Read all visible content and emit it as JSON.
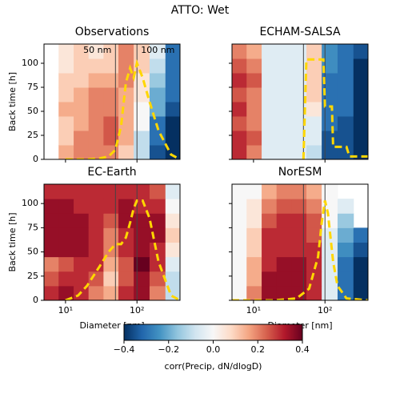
{
  "title": "ATTO: Wet",
  "colorbar": {
    "label": "corr(Precip, dN/dlogD)",
    "colormap": "RdBu_r",
    "lim": [
      -0.4,
      0.4
    ],
    "ticks": [
      {
        "value": -0.4,
        "label": "−0.4"
      },
      {
        "value": -0.2,
        "label": "−0.2"
      },
      0.0,
      0.2,
      0.4
    ]
  },
  "chart_data": [
    {
      "type": "heatmap",
      "title": "Observations",
      "ylabel": "Back time [h]",
      "log_x": true,
      "xlim": [
        5,
        400
      ],
      "ylim": [
        0,
        120
      ],
      "xticks": [
        10,
        100
      ],
      "yticks": [
        0,
        25,
        50,
        75,
        100
      ],
      "x_edges": [
        5,
        8,
        13,
        21,
        34,
        55,
        90,
        150,
        250,
        400
      ],
      "y_edges": [
        0,
        15,
        30,
        45,
        60,
        75,
        90,
        105,
        120
      ],
      "values": [
        [
          null,
          0.15,
          0.2,
          0.2,
          0.2,
          0.1,
          -0.1,
          -0.35,
          -0.4
        ],
        [
          null,
          0.1,
          0.2,
          0.2,
          0.25,
          0.15,
          -0.1,
          -0.3,
          -0.4
        ],
        [
          null,
          0.1,
          0.15,
          0.2,
          0.25,
          0.15,
          0,
          -0.3,
          -0.4
        ],
        [
          null,
          0.15,
          0.15,
          0.2,
          0.2,
          0.15,
          0,
          -0.2,
          -0.35
        ],
        [
          null,
          0.1,
          0.15,
          0.2,
          0.2,
          0.15,
          0.05,
          -0.2,
          -0.3
        ],
        [
          null,
          0.1,
          0.1,
          0.15,
          0.15,
          0.2,
          0.05,
          -0.15,
          -0.3
        ],
        [
          null,
          0.05,
          0.1,
          0.1,
          0.1,
          0.2,
          0.1,
          -0.1,
          -0.3
        ],
        [
          null,
          0.05,
          0.1,
          0.05,
          0.1,
          0.2,
          0.1,
          -0.05,
          -0.3
        ]
      ],
      "vlines": [
        50,
        100
      ],
      "annotations": [
        "50 nm",
        "100 nm"
      ],
      "line": {
        "color": "#ffd700",
        "x": [
          10,
          20,
          30,
          40,
          50,
          60,
          70,
          80,
          90,
          100,
          120,
          150,
          200,
          300,
          400
        ],
        "y": [
          0,
          0,
          1,
          3,
          10,
          35,
          80,
          95,
          85,
          100,
          85,
          60,
          30,
          5,
          0
        ]
      }
    },
    {
      "type": "heatmap",
      "title": "ECHAM-SALSA",
      "log_x": true,
      "xlim": [
        5,
        400
      ],
      "ylim": [
        0,
        120
      ],
      "xticks": [
        10,
        100
      ],
      "yticks": [
        0,
        25,
        50,
        75,
        100
      ],
      "x_edges": [
        5,
        8,
        13,
        21,
        34,
        55,
        90,
        150,
        250,
        400
      ],
      "y_edges": [
        0,
        15,
        30,
        45,
        60,
        75,
        90,
        105,
        120
      ],
      "values": [
        [
          0.3,
          0.2,
          -0.05,
          -0.05,
          -0.05,
          -0.1,
          -0.35,
          -0.35,
          -0.4
        ],
        [
          0.3,
          0.25,
          -0.05,
          -0.05,
          -0.05,
          -0.05,
          -0.35,
          -0.35,
          -0.4
        ],
        [
          0.25,
          0.2,
          -0.05,
          -0.05,
          -0.05,
          -0.05,
          -0.3,
          -0.35,
          -0.4
        ],
        [
          0.3,
          0.2,
          -0.05,
          -0.05,
          -0.05,
          0.05,
          -0.3,
          -0.3,
          -0.4
        ],
        [
          0.25,
          0.2,
          -0.05,
          -0.05,
          -0.05,
          0.1,
          -0.3,
          -0.3,
          -0.4
        ],
        [
          0.3,
          0.25,
          -0.05,
          -0.05,
          -0.05,
          0.1,
          -0.3,
          -0.3,
          -0.4
        ],
        [
          0.25,
          0.2,
          -0.05,
          -0.05,
          -0.05,
          0.1,
          -0.25,
          -0.3,
          -0.4
        ],
        [
          0.2,
          0.15,
          -0.05,
          -0.05,
          -0.05,
          0.1,
          -0.25,
          -0.3,
          -0.35
        ]
      ],
      "vlines": [
        50,
        100
      ],
      "line": {
        "color": "#ffd700",
        "x": [
          50,
          55,
          95,
          100,
          125,
          130,
          200,
          220,
          400
        ],
        "y": [
          0,
          104,
          104,
          55,
          55,
          13,
          13,
          3,
          3
        ]
      }
    },
    {
      "type": "heatmap",
      "title": "EC-Earth",
      "xlabel": "Diameter [nm]",
      "ylabel": "Back time [h]",
      "log_x": true,
      "xlim": [
        5,
        400
      ],
      "ylim": [
        0,
        120
      ],
      "xticks": [
        {
          "value": 10,
          "label": "10¹"
        },
        {
          "value": 100,
          "label": "10²"
        }
      ],
      "yticks": [
        0,
        25,
        50,
        75,
        100
      ],
      "x_edges": [
        5,
        8,
        13,
        21,
        34,
        55,
        90,
        150,
        250,
        400
      ],
      "y_edges": [
        0,
        15,
        30,
        45,
        60,
        75,
        90,
        105,
        120
      ],
      "values": [
        [
          0.3,
          0.35,
          0.3,
          0.2,
          0.15,
          0.3,
          0.35,
          0.2,
          -0.1
        ],
        [
          0.25,
          0.3,
          0.3,
          0.25,
          0.1,
          0.25,
          0.35,
          0.25,
          -0.1
        ],
        [
          0.2,
          0.25,
          0.3,
          0.3,
          0.15,
          0.25,
          0.4,
          0.3,
          -0.05
        ],
        [
          0.35,
          0.35,
          0.35,
          0.3,
          0.2,
          0.3,
          0.35,
          0.3,
          0.05
        ],
        [
          0.35,
          0.35,
          0.35,
          0.3,
          0.2,
          0.3,
          0.35,
          0.35,
          0.1
        ],
        [
          0.35,
          0.35,
          0.35,
          0.3,
          0.25,
          0.35,
          0.35,
          0.35,
          0.05
        ],
        [
          0.35,
          0.35,
          0.3,
          0.3,
          0.3,
          0.35,
          0.3,
          0.3,
          0.0
        ],
        [
          0.3,
          0.3,
          0.3,
          0.3,
          0.3,
          0.3,
          0.3,
          0.25,
          -0.05
        ]
      ],
      "vlines": [
        50,
        100
      ],
      "line": {
        "color": "#ffd700",
        "x": [
          10,
          15,
          20,
          30,
          40,
          50,
          60,
          70,
          80,
          90,
          100,
          120,
          150,
          200,
          300,
          400
        ],
        "y": [
          0,
          5,
          15,
          35,
          50,
          58,
          58,
          65,
          80,
          95,
          103,
          103,
          85,
          40,
          5,
          0
        ]
      }
    },
    {
      "type": "heatmap",
      "title": "NorESM",
      "xlabel": "Diameter [nm]",
      "log_x": true,
      "xlim": [
        5,
        400
      ],
      "ylim": [
        0,
        120
      ],
      "xticks": [
        {
          "value": 10,
          "label": "10¹"
        },
        {
          "value": 100,
          "label": "10²"
        }
      ],
      "yticks": [
        0,
        25,
        50,
        75,
        100
      ],
      "x_edges": [
        5,
        8,
        13,
        21,
        34,
        55,
        90,
        150,
        250,
        400
      ],
      "y_edges": [
        0,
        15,
        30,
        45,
        60,
        75,
        90,
        105,
        120
      ],
      "values": [
        [
          0.0,
          0.2,
          0.35,
          0.35,
          0.35,
          0.3,
          -0.05,
          -0.3,
          -0.4
        ],
        [
          0.0,
          0.15,
          0.35,
          0.35,
          0.35,
          0.3,
          -0.05,
          -0.3,
          -0.4
        ],
        [
          0.0,
          0.15,
          0.3,
          0.35,
          0.35,
          0.3,
          -0.05,
          -0.3,
          -0.4
        ],
        [
          0.0,
          0.1,
          0.3,
          0.3,
          0.3,
          0.3,
          -0.05,
          -0.25,
          -0.35
        ],
        [
          0.0,
          0.1,
          0.3,
          0.3,
          0.3,
          0.25,
          -0.05,
          -0.2,
          -0.3
        ],
        [
          0.0,
          0.05,
          0.25,
          0.3,
          0.3,
          0.25,
          0.0,
          -0.15,
          null
        ],
        [
          0.0,
          0.05,
          0.2,
          0.25,
          0.25,
          0.2,
          0.0,
          -0.05,
          null
        ],
        [
          0.0,
          0.0,
          0.15,
          0.2,
          0.2,
          0.15,
          0.0,
          null,
          null
        ]
      ],
      "vlines": [
        50,
        100
      ],
      "line": {
        "color": "#ffd700",
        "x": [
          5,
          10,
          20,
          40,
          60,
          80,
          90,
          100,
          110,
          130,
          150,
          200,
          400
        ],
        "y": [
          0,
          0,
          0,
          2,
          12,
          45,
          80,
          103,
          90,
          40,
          15,
          2,
          0
        ]
      }
    }
  ]
}
